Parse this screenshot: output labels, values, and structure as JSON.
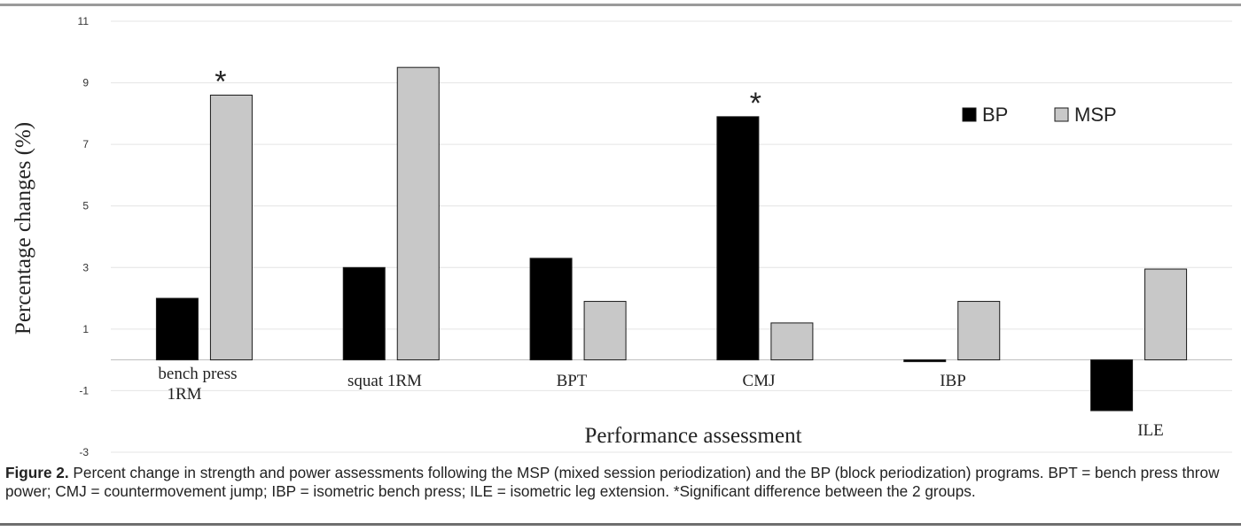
{
  "chart_data": {
    "type": "bar",
    "categories": [
      "bench press 1RM",
      "squat 1RM",
      "BPT",
      "CMJ",
      "IBP",
      "ILE"
    ],
    "series": [
      {
        "name": "BP",
        "values": [
          2.0,
          3.0,
          3.3,
          7.9,
          -0.05,
          -1.65
        ],
        "color": "#000000"
      },
      {
        "name": "MSP",
        "values": [
          8.6,
          9.5,
          1.9,
          1.2,
          1.9,
          2.95
        ],
        "color": "#c8c8c8"
      }
    ],
    "significant": [
      0,
      3
    ],
    "significance_marker": "*",
    "ylabel": "Percentage changes (%)",
    "xlabel": "Performance assessment",
    "ylim": [
      -3,
      11
    ],
    "yticks": [
      11,
      9,
      7,
      5,
      3,
      1,
      -1,
      -3
    ],
    "grid": true,
    "legend": "top-right"
  },
  "caption": {
    "label": "Figure 2.",
    "text": " Percent change in strength and power assessments following the MSP (mixed session periodization) and the BP (block periodization) programs. BPT = bench press throw power; CMJ = countermovement jump; IBP = isometric bench press; ILE = isometric leg extension. *Significant difference between the 2 groups."
  }
}
